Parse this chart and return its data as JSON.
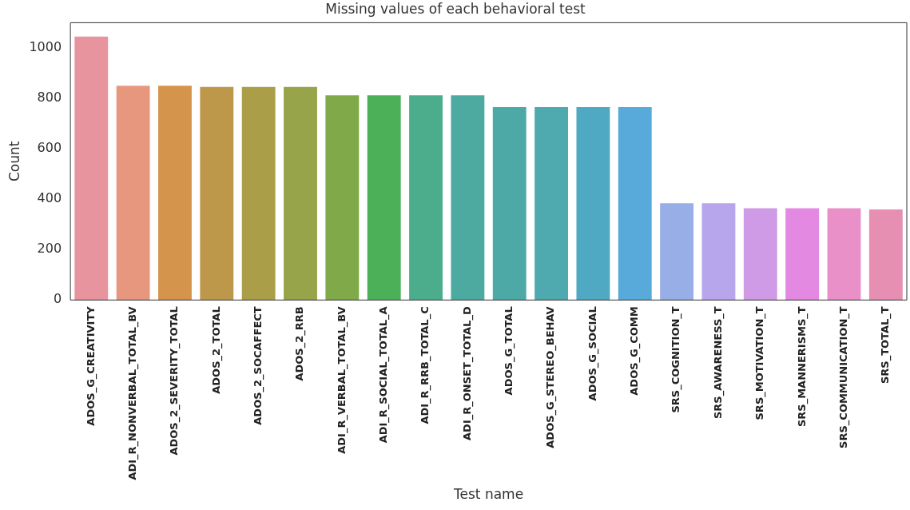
{
  "chart_data": {
    "type": "bar",
    "title": "Missing values of each behavioral test",
    "xlabel": "Test name",
    "ylabel": "Count",
    "categories": [
      "ADOS_G_CREATIVITY",
      "ADI_R_NONVERBAL_TOTAL_BV",
      "ADOS_2_SEVERITY_TOTAL",
      "ADOS_2_TOTAL",
      "ADOS_2_SOCAFFECT",
      "ADOS_2_RRB",
      "ADI_R_VERBAL_TOTAL_BV",
      "ADI_R_SOCIAL_TOTAL_A",
      "ADI_R_RRB_TOTAL_C",
      "ADI_R_ONSET_TOTAL_D",
      "ADOS_G_TOTAL",
      "ADOS_G_STEREO_BEHAV",
      "ADOS_G_SOCIAL",
      "ADOS_G_COMM",
      "SRS_COGNITION_T",
      "SRS_AWARENESS_T",
      "SRS_MOTIVATION_T",
      "SRS_MANNERISMS_T",
      "SRS_COMMUNICATION_T",
      "SRS_TOTAL_T"
    ],
    "values": [
      1045,
      850,
      850,
      845,
      845,
      845,
      812,
      812,
      812,
      812,
      765,
      765,
      765,
      765,
      384,
      384,
      364,
      364,
      364,
      359
    ],
    "colors": [
      "#e8949f",
      "#e8977f",
      "#d5944c",
      "#bd984b",
      "#aa9e49",
      "#97a449",
      "#80aa49",
      "#4bb058",
      "#4bad8c",
      "#4caaa0",
      "#4da9a5",
      "#4eaaaf",
      "#50a9c2",
      "#58aadb",
      "#97aee6",
      "#b7a6ec",
      "#cf9ae6",
      "#e389e2",
      "#e990c8",
      "#e78fb3"
    ],
    "ylim": [
      0,
      1100
    ],
    "yticks": [
      0,
      200,
      400,
      600,
      800,
      1000
    ],
    "grid": false,
    "legend": false
  }
}
